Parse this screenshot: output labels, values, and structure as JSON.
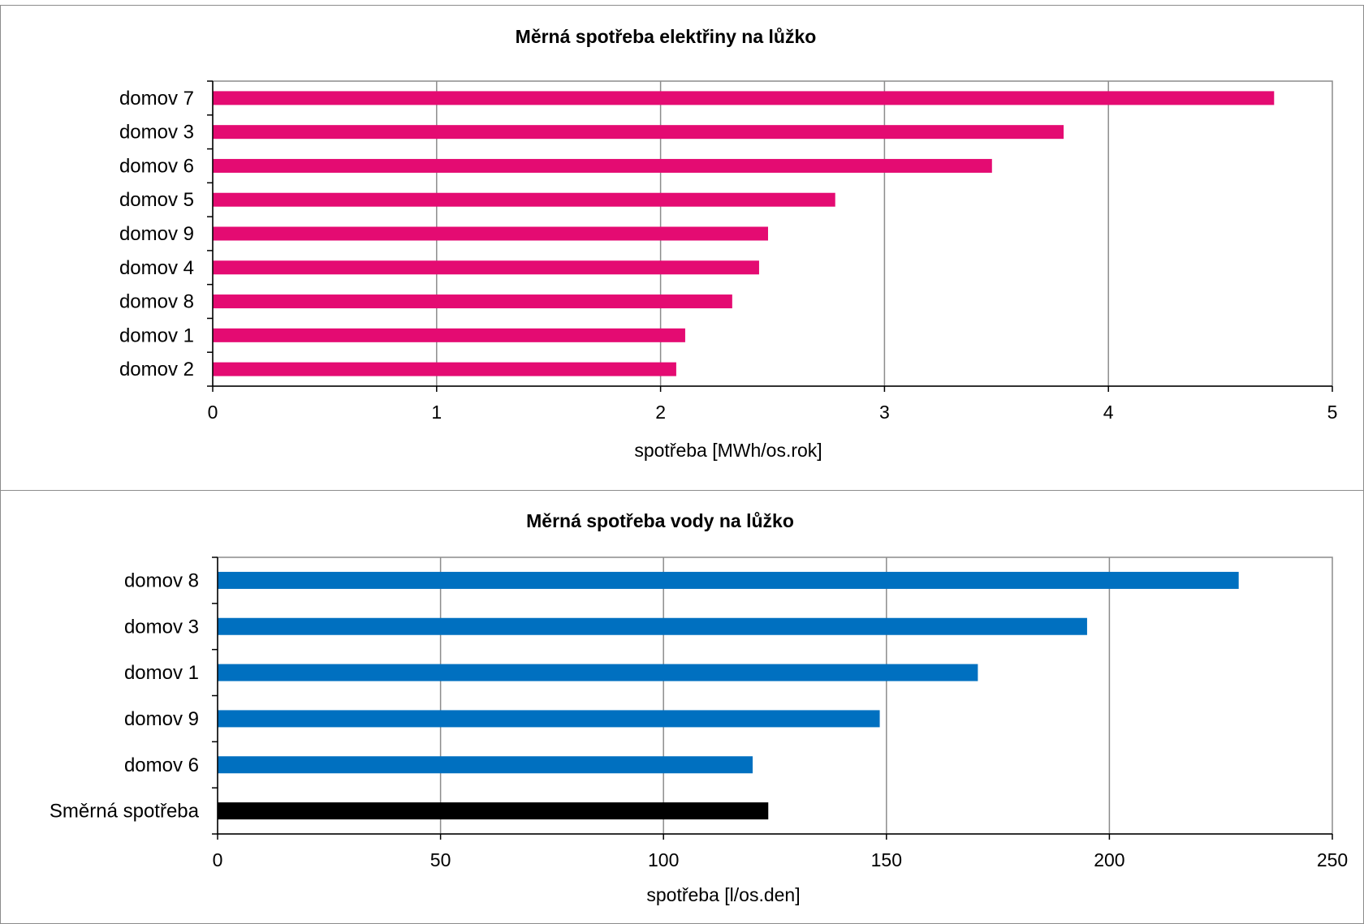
{
  "chart_data": [
    {
      "type": "bar",
      "orientation": "horizontal",
      "title": "Měrná spotřeba elektřiny na lůžko",
      "xlabel": "spotřeba [MWh/os.rok]",
      "ylabel": "",
      "xlim": [
        0,
        5
      ],
      "xticks": [
        "0",
        "1",
        "2",
        "3",
        "4",
        "5"
      ],
      "grid": true,
      "legend": "none",
      "categories": [
        "domov 7",
        "domov 3",
        "domov 6",
        "domov 5",
        "domov 9",
        "domov 4",
        "domov 8",
        "domov 1",
        "domov 2"
      ],
      "values": [
        4.74,
        3.8,
        3.48,
        2.78,
        2.48,
        2.44,
        2.32,
        2.11,
        2.07
      ],
      "colors": [
        "#e40b72",
        "#e40b72",
        "#e40b72",
        "#e40b72",
        "#e40b72",
        "#e40b72",
        "#e40b72",
        "#e40b72",
        "#e40b72"
      ]
    },
    {
      "type": "bar",
      "orientation": "horizontal",
      "title": "Měrná spotřeba vody na lůžko",
      "xlabel": "spotřeba [l/os.den]",
      "ylabel": "",
      "xlim": [
        0,
        250
      ],
      "xticks": [
        "0",
        "50",
        "100",
        "150",
        "200",
        "250"
      ],
      "grid": true,
      "legend": "none",
      "categories": [
        "domov 8",
        "domov 3",
        "domov 1",
        "domov 9",
        "domov 6",
        "Směrná spotřeba"
      ],
      "values": [
        229,
        195,
        170.5,
        148.5,
        120,
        123.5
      ],
      "colors": [
        "#0070c0",
        "#0070c0",
        "#0070c0",
        "#0070c0",
        "#0070c0",
        "#000000"
      ]
    }
  ]
}
